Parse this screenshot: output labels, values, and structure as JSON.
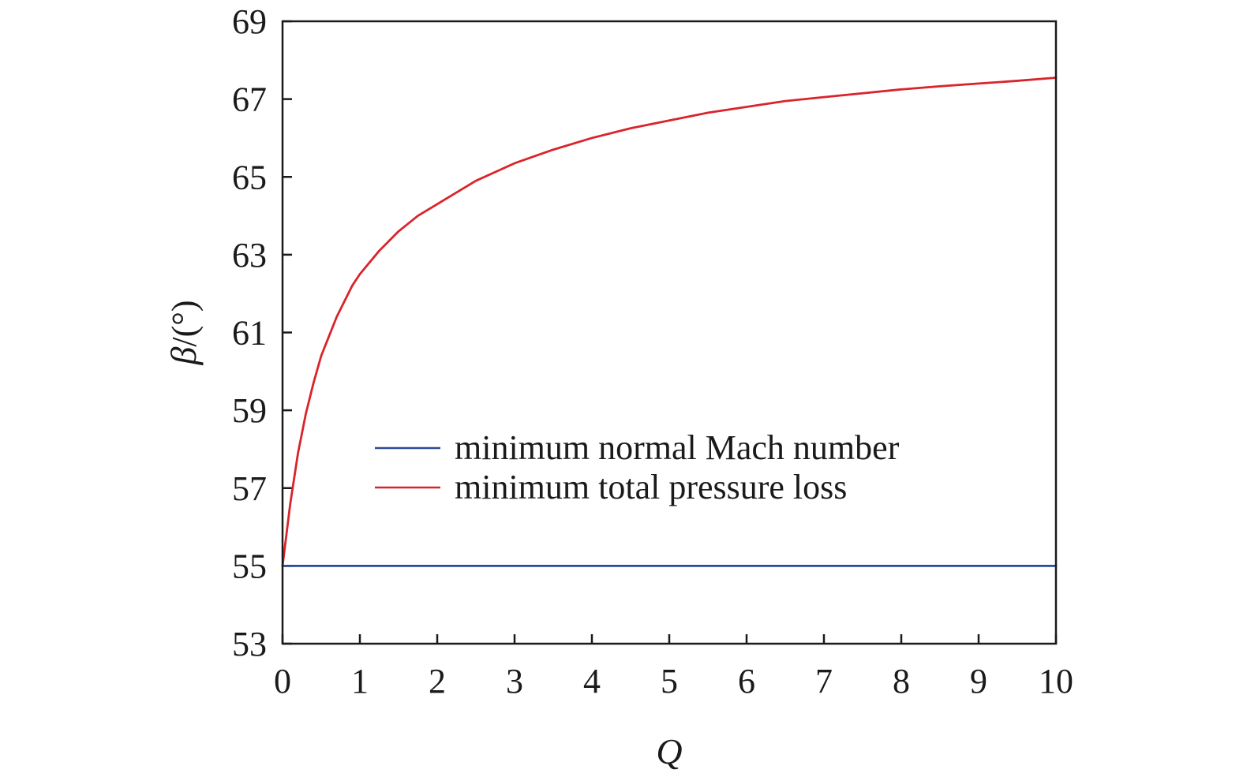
{
  "chart_data": {
    "type": "line",
    "title": "",
    "xlabel": "Q",
    "ylabel_symbol": "β",
    "ylabel_unit": "/(°)",
    "xlim": [
      0,
      10
    ],
    "ylim": [
      53,
      69
    ],
    "x_ticks": [
      0,
      1,
      2,
      3,
      4,
      5,
      6,
      7,
      8,
      9,
      10
    ],
    "y_ticks": [
      53,
      55,
      57,
      59,
      61,
      63,
      65,
      67,
      69
    ],
    "grid": false,
    "legend_position": "center-right",
    "series": [
      {
        "name": "minimum normal Mach number",
        "color": "#2b4a9b",
        "x": [
          0,
          10
        ],
        "y": [
          55,
          55
        ]
      },
      {
        "name": "minimum total pressure loss",
        "color": "#d9242b",
        "x": [
          0,
          0.1,
          0.2,
          0.3,
          0.4,
          0.5,
          0.6,
          0.7,
          0.8,
          0.9,
          1.0,
          1.25,
          1.5,
          1.75,
          2.0,
          2.5,
          3.0,
          3.5,
          4.0,
          4.5,
          5.0,
          5.5,
          6.0,
          6.5,
          7.0,
          7.5,
          8.0,
          8.5,
          9.0,
          9.5,
          10.0
        ],
        "y": [
          55.0,
          56.6,
          57.9,
          58.9,
          59.7,
          60.4,
          60.9,
          61.4,
          61.8,
          62.2,
          62.5,
          63.1,
          63.6,
          64.0,
          64.3,
          64.9,
          65.35,
          65.7,
          66.0,
          66.25,
          66.45,
          66.65,
          66.8,
          66.95,
          67.05,
          67.15,
          67.25,
          67.33,
          67.4,
          67.47,
          67.55
        ]
      }
    ]
  }
}
